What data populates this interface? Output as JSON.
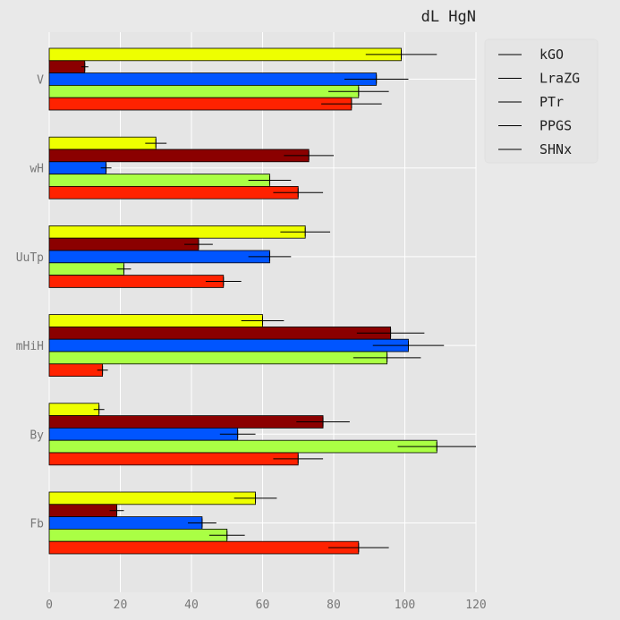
{
  "chart_data": {
    "type": "bar",
    "orientation": "horizontal",
    "title": "dL HgN",
    "xlabel": "",
    "ylabel": "",
    "xlim": [
      0,
      120
    ],
    "xticks": [
      0,
      20,
      40,
      60,
      80,
      100,
      120
    ],
    "grid": true,
    "legend_position": "top-right",
    "categories": [
      "V",
      "wH",
      "UuTp",
      "mHiH",
      "By",
      "Fb"
    ],
    "series": [
      {
        "name": "kGO",
        "color": "#eeff00",
        "values": [
          99,
          30,
          72,
          60,
          14,
          58
        ],
        "errors": [
          10,
          3,
          7,
          6,
          1.5,
          6
        ]
      },
      {
        "name": "LraZG",
        "color": "#8b0000",
        "values": [
          10,
          73,
          42,
          96,
          77,
          19
        ],
        "errors": [
          1,
          7,
          4,
          9.5,
          7.5,
          2
        ]
      },
      {
        "name": "PTr",
        "color": "#0055ff",
        "values": [
          92,
          16,
          62,
          101,
          53,
          43
        ],
        "errors": [
          9,
          1.5,
          6,
          10,
          5,
          4
        ]
      },
      {
        "name": "PPGS",
        "color": "#aaff44",
        "values": [
          87,
          62,
          21,
          95,
          109,
          50
        ],
        "errors": [
          8.5,
          6,
          2,
          9.5,
          11,
          5
        ]
      },
      {
        "name": "SHNx",
        "color": "#ff2200",
        "values": [
          85,
          70,
          49,
          15,
          70,
          87
        ],
        "errors": [
          8.5,
          7,
          5,
          1.5,
          7,
          8.5
        ]
      }
    ]
  }
}
